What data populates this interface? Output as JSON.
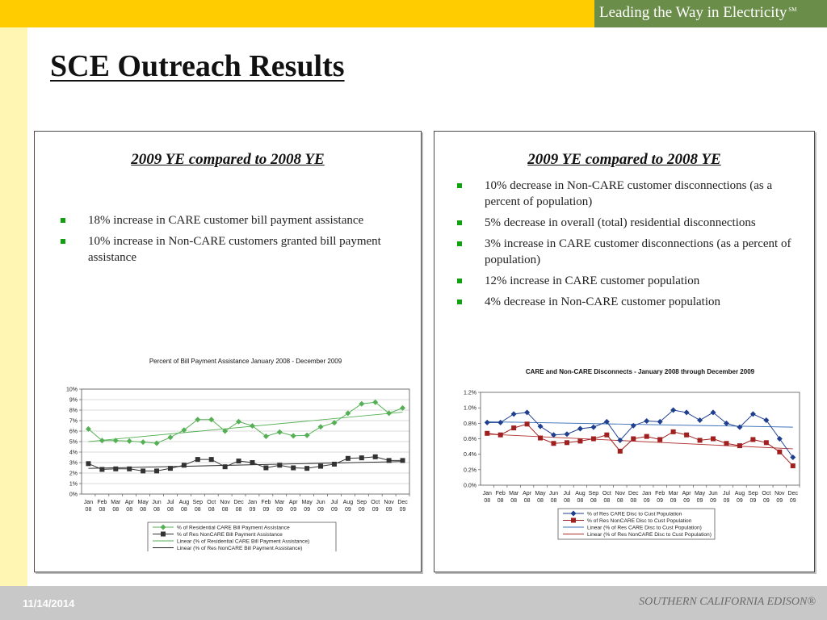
{
  "header": {
    "brand": "Leading the Way in Electricity",
    "brand_mark": "SM"
  },
  "slide": {
    "title": "SCE Outreach Results"
  },
  "left_panel": {
    "heading": "2009 YE compared to 2008 YE",
    "bullets": [
      "18% increase in CARE customer bill payment assistance",
      "10% increase in Non-CARE customers granted bill payment assistance"
    ]
  },
  "right_panel": {
    "heading": "2009 YE compared to 2008 YE",
    "bullets": [
      "10% decrease in Non-CARE customer disconnections (as a percent of population)",
      "5% decrease in overall (total) residential disconnections",
      "3% increase in CARE customer disconnections (as a percent of population)",
      "12% increase in CARE customer population",
      "4% decrease in Non-CARE customer population"
    ]
  },
  "footer": {
    "date": "11/14/2014",
    "company": "SOUTHERN CALIFORNIA EDISON®"
  },
  "chart_data": [
    {
      "type": "line",
      "title": "Percent of Bill Payment Assistance January 2008 - December 2009",
      "xlabel": "",
      "ylabel": "",
      "ylim": [
        0,
        10
      ],
      "y_ticks": [
        "0%",
        "1%",
        "2%",
        "3%",
        "4%",
        "5%",
        "6%",
        "7%",
        "8%",
        "9%",
        "10%"
      ],
      "categories": [
        "Jan 08",
        "Feb 08",
        "Mar 08",
        "Apr 08",
        "May 08",
        "Jun 08",
        "Jul 08",
        "Aug 08",
        "Sep 08",
        "Oct 08",
        "Nov 08",
        "Dec 08",
        "Jan 09",
        "Feb 09",
        "Mar 09",
        "Apr 09",
        "May 09",
        "Jun 09",
        "Jul 09",
        "Aug 09",
        "Sep 09",
        "Oct 09",
        "Nov 09",
        "Dec 09"
      ],
      "grid": true,
      "legend_position": "bottom",
      "series": [
        {
          "name": "% of Residential CARE Bill Payment Assistance",
          "color": "#55b055",
          "marker": "diamond",
          "values": [
            6.2,
            5.1,
            5.1,
            5.05,
            4.95,
            4.85,
            5.4,
            6.1,
            7.1,
            7.1,
            6.0,
            6.9,
            6.5,
            5.5,
            5.9,
            5.55,
            5.6,
            6.4,
            6.8,
            7.7,
            8.6,
            8.75,
            7.7,
            8.2
          ]
        },
        {
          "name": "% of Res NonCARE Bill Payment Assistance",
          "color": "#333333",
          "marker": "square",
          "values": [
            2.9,
            2.35,
            2.4,
            2.4,
            2.2,
            2.2,
            2.45,
            2.75,
            3.3,
            3.3,
            2.6,
            3.15,
            3.0,
            2.5,
            2.75,
            2.5,
            2.45,
            2.65,
            2.85,
            3.4,
            3.45,
            3.55,
            3.2,
            3.2
          ]
        }
      ],
      "trendlines": [
        {
          "name": "Linear (% of Residential CARE Bill Payment Assistance)",
          "color": "#55b055",
          "values": [
            5.0,
            7.8
          ]
        },
        {
          "name": "Linear (% of Res NonCARE Bill Payment Assistance)",
          "color": "#222222",
          "values": [
            2.45,
            3.1
          ]
        }
      ]
    },
    {
      "type": "line",
      "title": "CARE and Non-CARE Disconnects - January 2008 through December 2009",
      "xlabel": "",
      "ylabel": "",
      "ylim": [
        0,
        1.2
      ],
      "y_ticks": [
        "0.0%",
        "0.2%",
        "0.4%",
        "0.6%",
        "0.8%",
        "1.0%",
        "1.2%"
      ],
      "categories": [
        "Jan 08",
        "Feb 08",
        "Mar 08",
        "Apr 08",
        "May 08",
        "Jun 08",
        "Jul 08",
        "Aug 08",
        "Sep 08",
        "Oct 08",
        "Nov 08",
        "Dec 08",
        "Jan 09",
        "Feb 09",
        "Mar 09",
        "Apr 09",
        "May 09",
        "Jun 09",
        "Jul 09",
        "Aug 09",
        "Sep 09",
        "Oct 09",
        "Nov 09",
        "Dec 09"
      ],
      "grid": false,
      "legend_position": "bottom",
      "series": [
        {
          "name": "% of Res CARE Disc to Cust Population",
          "color": "#1f3f8f",
          "marker": "diamond",
          "values": [
            0.81,
            0.81,
            0.92,
            0.94,
            0.76,
            0.65,
            0.66,
            0.73,
            0.75,
            0.82,
            0.58,
            0.77,
            0.83,
            0.82,
            0.97,
            0.94,
            0.84,
            0.94,
            0.8,
            0.75,
            0.92,
            0.84,
            0.6,
            0.36
          ]
        },
        {
          "name": "% of Res NonCARE Disc to Cust Population",
          "color": "#a01f1f",
          "marker": "square",
          "values": [
            0.67,
            0.65,
            0.74,
            0.79,
            0.61,
            0.54,
            0.55,
            0.57,
            0.6,
            0.65,
            0.44,
            0.6,
            0.63,
            0.59,
            0.69,
            0.65,
            0.58,
            0.6,
            0.54,
            0.51,
            0.59,
            0.55,
            0.43,
            0.25
          ]
        }
      ],
      "trendlines": [
        {
          "name": "Linear (% of Res CARE Disc to Cust Population)",
          "color": "#3a70b8",
          "values": [
            0.82,
            0.75
          ]
        },
        {
          "name": "Linear (% of Res NonCARE Disc to Cust Population)",
          "color": "#b03030",
          "values": [
            0.66,
            0.47
          ]
        }
      ]
    }
  ]
}
